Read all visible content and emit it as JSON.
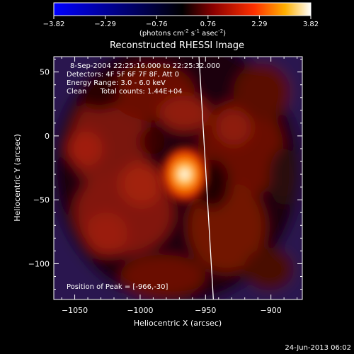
{
  "chart_data": {
    "type": "heatmap",
    "title": "Reconstructed RHESSI Image",
    "colorbar": {
      "ticks": [
        "-3.82",
        "-2.29",
        "-0.76",
        "0.76",
        "2.29",
        "3.82"
      ],
      "range": [
        -3.82,
        3.82
      ],
      "label_prefix": "(photons cm",
      "label_exp1": "-2",
      "label_mid": " s",
      "label_exp2": "-1",
      "label_mid2": " asec",
      "label_exp3": "-2",
      "label_suffix": ")",
      "colormap": "blue-black-red-yellow-white"
    },
    "xlabel": "Heliocentric X (arcsec)",
    "ylabel": "Heliocentric Y (arcsec)",
    "xlim": [
      -1066,
      -876
    ],
    "ylim": [
      -128,
      62
    ],
    "xticks": [
      {
        "value": -1050,
        "label": "−1050"
      },
      {
        "value": -1000,
        "label": "−1000"
      },
      {
        "value": -950,
        "label": "−950"
      },
      {
        "value": -900,
        "label": "−900"
      }
    ],
    "yticks": [
      {
        "value": 50,
        "label": "50"
      },
      {
        "value": 0,
        "label": "0"
      },
      {
        "value": -50,
        "label": "−50"
      },
      {
        "value": -100,
        "label": "−100"
      }
    ],
    "annotations": [
      "8-Sep-2004 22:25:16.000 to 22:25:32.000",
      "Detectors: 4F 5F 6F 7F 8F, Att 0",
      "Energy Range: 3.0 - 6.0 keV",
      "Clean      Total counts: 1.44E+04"
    ],
    "peak_label": "Position of Peak = [-966,-30]",
    "peak": {
      "x": -966,
      "y": -30
    },
    "limb_line": [
      [
        -955,
        62
      ],
      [
        -944,
        -128
      ]
    ],
    "timestamp": "24-Jun-2013 06:02"
  }
}
